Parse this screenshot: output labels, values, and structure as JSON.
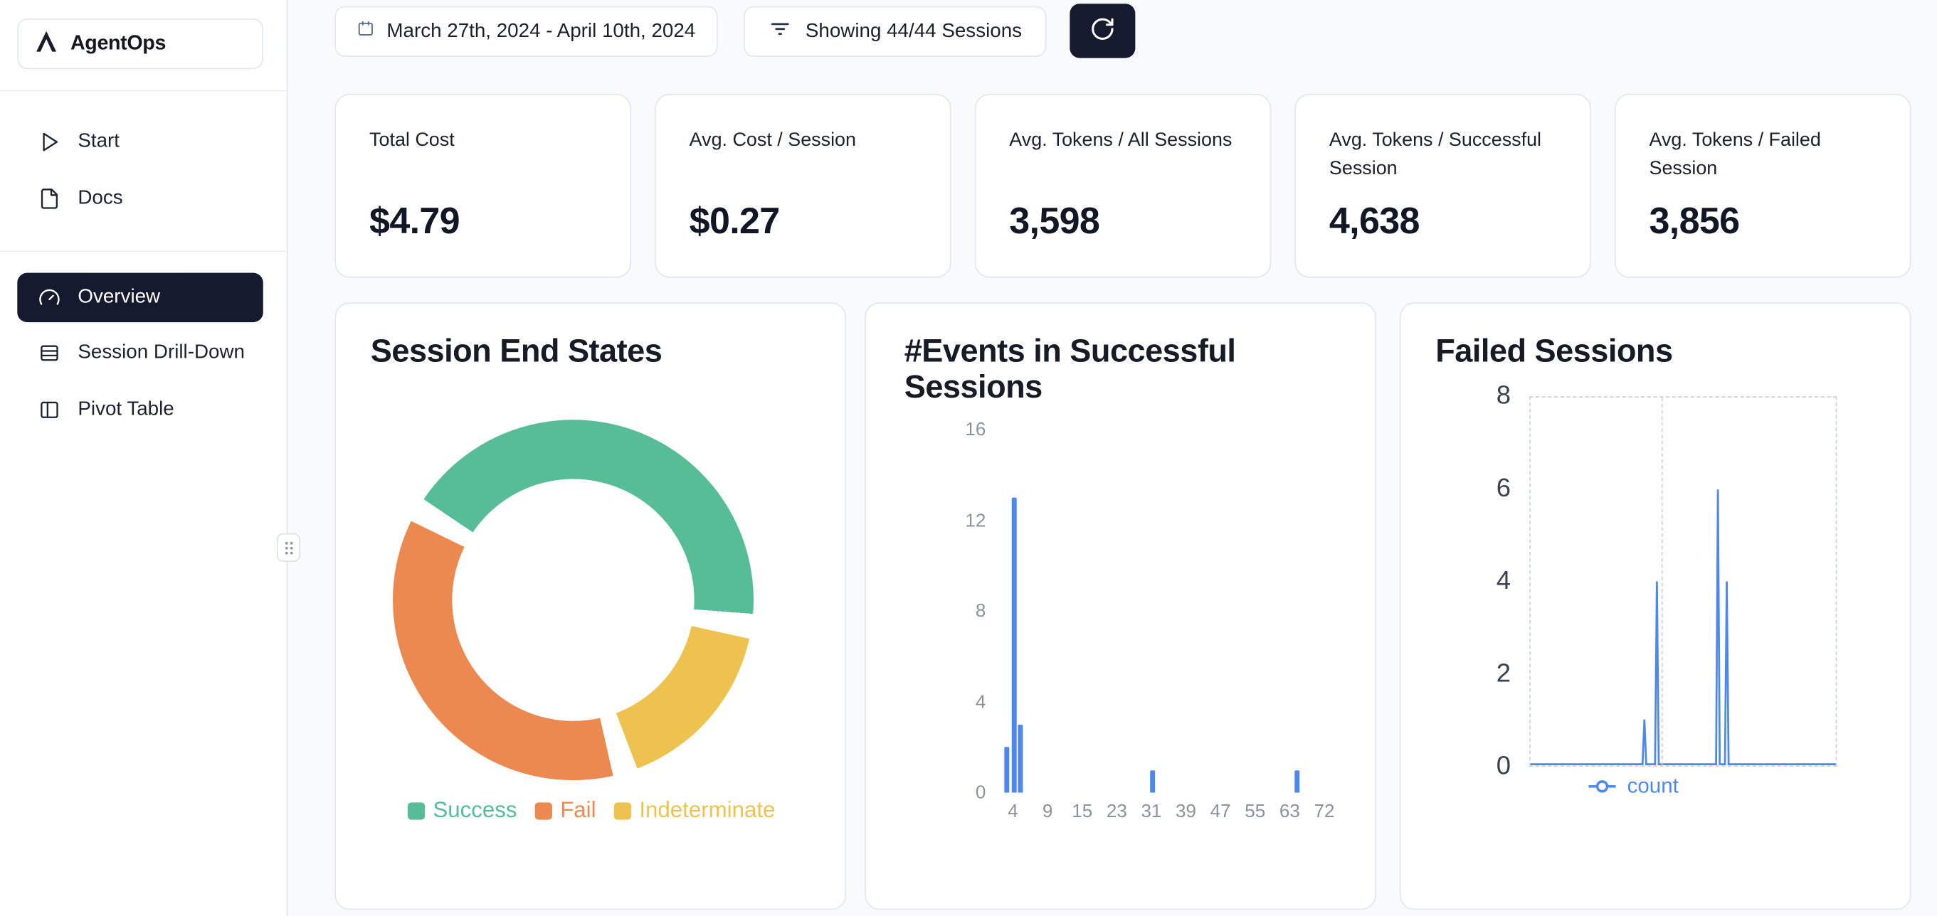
{
  "app": {
    "title": "AgentOps"
  },
  "colors": {
    "accent_dark": "#151a2e",
    "background": "#f8fafc",
    "card_border": "#e2e8f0",
    "chart_blue": "#4e87ee"
  },
  "sidebar": {
    "logo_label": "AgentOps",
    "nav_top": [
      {
        "label": "Start"
      },
      {
        "label": "Docs"
      }
    ],
    "nav_main": [
      {
        "label": "Overview",
        "active": true
      },
      {
        "label": "Session Drill-Down",
        "active": false
      },
      {
        "label": "Pivot Table",
        "active": false
      }
    ]
  },
  "topbar": {
    "date_range": "March 27th, 2024 - April 10th, 2024",
    "sessions_filter": "Showing 44/44 Sessions"
  },
  "stats": [
    {
      "label": "Total Cost",
      "value": "$4.79"
    },
    {
      "label": "Avg. Cost / Session",
      "value": "$0.27"
    },
    {
      "label": "Avg. Tokens / All Sessions",
      "value": "3,598"
    },
    {
      "label": "Avg. Tokens / Successful Session",
      "value": "4,638"
    },
    {
      "label": "Avg. Tokens / Failed Session",
      "value": "3,856"
    }
  ],
  "chart_data": [
    {
      "type": "pie",
      "donut": true,
      "title": "Session End States",
      "segments": [
        {
          "label": "Success",
          "value": 44,
          "color": "#56bd96"
        },
        {
          "label": "Fail",
          "value": 38,
          "color": "#ec8950"
        },
        {
          "label": "Indeterminate",
          "value": 18,
          "color": "#eec24e"
        }
      ],
      "draw_sequence": [
        0,
        2,
        1
      ],
      "start_angle_deg": -60,
      "legend_position": "bottom"
    },
    {
      "type": "bar",
      "title": "#Events in Successful Sessions",
      "x_tick_labels": [
        "4",
        "9",
        "15",
        "23",
        "31",
        "39",
        "47",
        "55",
        "63",
        "72"
      ],
      "y_tick_labels": [
        "0",
        "4",
        "8",
        "12",
        "16"
      ],
      "ylim": [
        0,
        16
      ],
      "bar_color": "#4e87ee",
      "grid": false,
      "bars": [
        {
          "x_frac": 0.033,
          "value": 2
        },
        {
          "x_frac": 0.055,
          "value": 13
        },
        {
          "x_frac": 0.073,
          "value": 3
        },
        {
          "x_frac": 0.452,
          "value": 1
        },
        {
          "x_frac": 0.872,
          "value": 1
        }
      ]
    },
    {
      "type": "line",
      "title": "Failed Sessions",
      "y_tick_labels": [
        "0",
        "2",
        "4",
        "6",
        "8"
      ],
      "ylim": [
        0,
        8
      ],
      "line_color": "#4e87ee",
      "legend": "count",
      "grid": "dashed",
      "vline_fracs": [
        0.43
      ],
      "spikes": [
        {
          "x_frac": 0.373,
          "value": 1
        },
        {
          "x_frac": 0.414,
          "value": 4
        },
        {
          "x_frac": 0.614,
          "value": 6
        },
        {
          "x_frac": 0.643,
          "value": 4
        }
      ]
    }
  ]
}
